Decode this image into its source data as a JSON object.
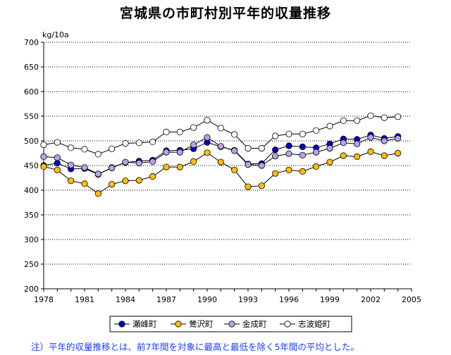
{
  "chart_data": {
    "type": "line",
    "title": "宮城県の市町村別平年的収量推移",
    "ylabel": "kg/10a",
    "xlabel": "",
    "ylim": [
      200,
      700
    ],
    "xlim": [
      1978,
      2005
    ],
    "y_ticks": [
      200,
      250,
      300,
      350,
      400,
      450,
      500,
      550,
      600,
      650,
      700
    ],
    "x_ticks": [
      1978,
      1981,
      1984,
      1987,
      1990,
      1993,
      1996,
      1999,
      2002,
      2005
    ],
    "grid": "horizontal dotted",
    "legend_position": "bottom",
    "x": [
      1978,
      1979,
      1980,
      1981,
      1982,
      1983,
      1984,
      1985,
      1986,
      1987,
      1988,
      1989,
      1990,
      1991,
      1992,
      1993,
      1994,
      1995,
      1996,
      1997,
      1998,
      1999,
      2000,
      2001,
      2002,
      2003,
      2004
    ],
    "series": [
      {
        "name": "瀬峰町",
        "color": "#0000cc",
        "values": [
          450,
          455,
          443,
          444,
          432,
          446,
          456,
          459,
          461,
          480,
          481,
          484,
          497,
          488,
          481,
          453,
          454,
          482,
          490,
          488,
          486,
          494,
          504,
          503,
          512,
          505,
          509
        ]
      },
      {
        "name": "鶯沢町",
        "color": "#ffbf00",
        "values": [
          448,
          441,
          419,
          413,
          393,
          412,
          419,
          420,
          428,
          447,
          447,
          458,
          476,
          457,
          441,
          407,
          409,
          434,
          441,
          438,
          448,
          457,
          470,
          468,
          478,
          470,
          475
        ]
      },
      {
        "name": "金成町",
        "color": "#b8a2e8",
        "values": [
          468,
          466,
          451,
          446,
          433,
          445,
          457,
          455,
          458,
          477,
          477,
          492,
          507,
          489,
          480,
          452,
          450,
          469,
          474,
          471,
          477,
          485,
          496,
          494,
          507,
          500,
          505
        ]
      },
      {
        "name": "志波姫町",
        "color": "#ffffff",
        "values": [
          492,
          497,
          486,
          483,
          473,
          484,
          495,
          496,
          498,
          518,
          518,
          527,
          542,
          526,
          513,
          485,
          485,
          510,
          514,
          514,
          521,
          530,
          541,
          541,
          551,
          547,
          549
        ]
      }
    ]
  },
  "note": "注）平年的収量推移とは、前7年間を対象に最高と最低を除く5年間の平均とした。"
}
